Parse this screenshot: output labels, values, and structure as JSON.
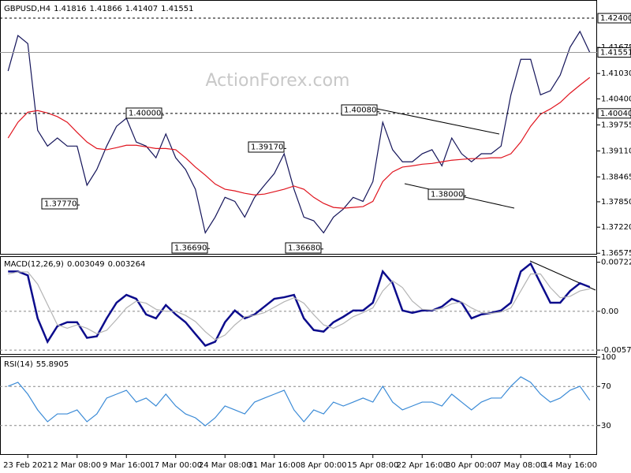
{
  "watermark": "ActionForex.com",
  "chart_data": [
    {
      "type": "line",
      "title": "GBPUSD,H4",
      "ohlc": [
        1.41816,
        1.41866,
        1.41407,
        1.41551
      ],
      "categories": [
        null,
        null,
        "23 Feb 2021",
        null,
        null,
        null,
        null,
        "2 Mar 08:00",
        null,
        null,
        null,
        null,
        "9 Mar 16:00",
        null,
        null,
        null,
        null,
        "17 Mar 00:00",
        null,
        null,
        null,
        null,
        "24 Mar 08:00",
        null,
        null,
        null,
        null,
        "31 Mar 16:00",
        null,
        null,
        null,
        null,
        "8 Apr 00:00",
        null,
        null,
        null,
        null,
        "15 Apr 08:00",
        null,
        null,
        null,
        null,
        "22 Apr 16:00",
        null,
        null,
        null,
        null,
        "30 Apr 00:00",
        null,
        null,
        null,
        null,
        "7 May 08:00",
        null,
        null,
        null,
        null,
        "14 May 16:00",
        null,
        null
      ],
      "series": [
        {
          "color": "#14145a",
          "values": [
            1.4109,
            1.4197,
            1.4177,
            1.3962,
            1.3923,
            1.3943,
            1.3923,
            1.3923,
            1.3826,
            1.3865,
            1.3923,
            1.3972,
            1.3992,
            1.3933,
            1.3923,
            1.3894,
            1.3953,
            1.3894,
            1.3865,
            1.3816,
            1.3708,
            1.3747,
            1.3796,
            1.3786,
            1.3747,
            1.3796,
            1.3826,
            1.3855,
            1.3904,
            1.3816,
            1.3747,
            1.3738,
            1.3708,
            1.3747,
            1.3767,
            1.3796,
            1.3786,
            1.3835,
            1.3982,
            1.3914,
            1.3884,
            1.3884,
            1.3904,
            1.3914,
            1.3874,
            1.3943,
            1.3904,
            1.3884,
            1.3904,
            1.3904,
            1.3923,
            1.405,
            1.4138,
            1.4138,
            1.405,
            1.406,
            1.4099,
            1.4168,
            1.4207,
            1.4155
          ]
        },
        {
          "color": "#e0141e",
          "values": [
            1.3943,
            1.3982,
            1.4007,
            1.4011,
            1.4005,
            1.3996,
            1.3982,
            1.3957,
            1.3933,
            1.3917,
            1.3914,
            1.3919,
            1.3925,
            1.3925,
            1.3921,
            1.3917,
            1.3917,
            1.3914,
            1.3894,
            1.3871,
            1.3851,
            1.3829,
            1.3816,
            1.3812,
            1.3806,
            1.3802,
            1.3804,
            1.381,
            1.3816,
            1.3824,
            1.3816,
            1.3796,
            1.3781,
            1.3771,
            1.3769,
            1.3771,
            1.3773,
            1.3786,
            1.3835,
            1.3859,
            1.3871,
            1.3874,
            1.3878,
            1.388,
            1.3884,
            1.3888,
            1.389,
            1.3892,
            1.3892,
            1.3894,
            1.3894,
            1.3904,
            1.3933,
            1.3972,
            1.4002,
            1.4015,
            1.4031,
            1.4054,
            1.4074,
            1.4093
          ]
        }
      ],
      "ylim": [
        1.3654,
        1.4285
      ],
      "yticks": [
        1.41675,
        {
          "value": 1.4103,
          "label": "1.41030"
        },
        {
          "value": 1.404,
          "label": "1.40400"
        },
        1.39755,
        {
          "value": 1.3911,
          "label": "1.39110"
        },
        1.38465,
        {
          "value": 1.3785,
          "label": "1.37850"
        },
        {
          "value": 1.3722,
          "label": "1.37220"
        },
        1.36575
      ],
      "levels": [
        {
          "value": 1.424,
          "label": "1.42400",
          "style": "dashed"
        },
        {
          "value": 1.41551,
          "label": "1.41551",
          "style": "solid"
        },
        {
          "value": 1.4004,
          "label": "1.40040",
          "style": "dashed"
        }
      ],
      "annotations": [
        {
          "value": 1.4,
          "label": "1.40000"
        },
        {
          "value": 1.3777,
          "label": "1.37770"
        },
        {
          "value": 1.3917,
          "label": "1.39170"
        },
        {
          "value": 1.3669,
          "label": "1.36690"
        },
        {
          "value": 1.3668,
          "label": "1.36680"
        },
        {
          "value": 1.4008,
          "label": "1.40080"
        },
        {
          "value": 1.38,
          "label": "1.38000"
        }
      ]
    },
    {
      "type": "line",
      "title": "MACD(12,26,9)",
      "readout": [
        0.003049,
        0.003264
      ],
      "series": [
        {
          "color": "#0c0c8c",
          "values": [
            0.00587,
            0.00587,
            0.00529,
            -0.00104,
            -0.00449,
            -0.00219,
            -0.00161,
            -0.00161,
            -0.00391,
            -0.00368,
            -0.00104,
            0.00127,
            0.00242,
            0.00184,
            -0.00046,
            -0.00104,
            0.00092,
            -0.00046,
            -0.00161,
            -0.00334,
            -0.00506,
            -0.00449,
            -0.00161,
            0.00012,
            -0.00104,
            -0.00046,
            0.00069,
            0.00184,
            0.00207,
            0.00242,
            -0.00104,
            -0.00276,
            -0.00299,
            -0.00161,
            -0.00081,
            0.00012,
            0.00012,
            0.00127,
            0.00587,
            0.00414,
            0.00012,
            -0.00023,
            0.00012,
            0.00012,
            0.00069,
            0.00184,
            0.00127,
            -0.00104,
            -0.00046,
            -0.00023,
            0.00012,
            0.00127,
            0.00587,
            0.00702,
            0.00414,
            0.00127,
            0.00127,
            0.00299,
            0.00414,
            0.00357
          ]
        },
        {
          "color": "#b4b4b4",
          "values": [
            0.0055,
            0.0058,
            0.0058,
            0.004,
            0.001,
            -0.002,
            -0.0025,
            -0.002,
            -0.0025,
            -0.0033,
            -0.0028,
            -0.0012,
            0.0005,
            0.0015,
            0.0012,
            0.0003,
            0,
            0,
            -0.0006,
            -0.0015,
            -0.003,
            -0.0042,
            -0.0035,
            -0.002,
            -0.0008,
            -0.0006,
            -0.0002,
            0.0006,
            0.0014,
            0.002,
            0.0012,
            -0.0005,
            -0.002,
            -0.0025,
            -0.0018,
            -0.0008,
            -0.0002,
            0.0005,
            0.003,
            0.0045,
            0.0035,
            0.0015,
            0.0003,
            0.0002,
            0.0004,
            0.0011,
            0.0014,
            0.0005,
            -0.0002,
            -0.0003,
            -0.0001,
            0.0005,
            0.003,
            0.0055,
            0.0055,
            0.0035,
            0.002,
            0.0022,
            0.003,
            0.0033
          ]
        }
      ],
      "ylim": [
        -0.0064,
        0.008
      ],
      "yticks": [
        0.007227,
        {
          "value": 0,
          "label": "0.00"
        },
        -0.005714
      ]
    },
    {
      "type": "line",
      "title": "RSI(14)",
      "readout": [
        55.8905
      ],
      "series": [
        {
          "color": "#3a8ad6",
          "values": [
            70.2,
            74.2,
            62.1,
            46,
            33.9,
            41.9,
            41.9,
            46,
            33.9,
            41.9,
            58.1,
            62.1,
            66.1,
            54,
            58.1,
            50,
            62.1,
            50,
            41.9,
            37.9,
            29.8,
            37.9,
            50,
            46,
            41.9,
            54,
            58.1,
            62.1,
            66.1,
            46,
            33.9,
            46,
            41.9,
            54,
            50,
            54,
            58.1,
            54,
            70.2,
            54,
            46,
            50,
            54,
            54,
            50,
            62.1,
            54,
            46,
            54,
            58.1,
            58.1,
            70.2,
            79.8,
            74.2,
            62.1,
            54,
            58.1,
            66.1,
            70.2,
            55.89
          ]
        }
      ],
      "ylim": [
        0,
        100
      ],
      "yticks": [
        100,
        70,
        30
      ]
    }
  ]
}
